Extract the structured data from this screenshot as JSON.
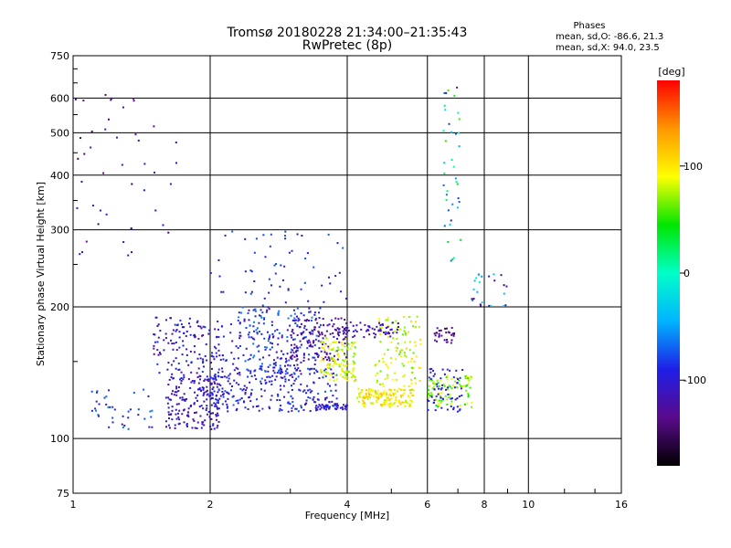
{
  "chart_data": {
    "type": "scatter",
    "title": "Tromsø 20180228 21:34:00–21:35:43",
    "subtitle": "RwPretec (8p)",
    "xlabel": "Frequency [MHz]",
    "ylabel": "Stationary phase Virtual Height [km]",
    "x_scale": "log",
    "y_scale": "log",
    "xlim": [
      1,
      16
    ],
    "ylim": [
      75,
      750
    ],
    "x_ticks": [
      "1",
      "2",
      "4",
      "6",
      "8",
      "10",
      "16"
    ],
    "y_ticks": [
      "75",
      "100",
      "200",
      "300",
      "400",
      "500",
      "600",
      "750"
    ],
    "grid": true,
    "phase_info": {
      "heading": "Phases",
      "line_o": "mean, sd,O:  -86.6, 21.3",
      "line_x": "mean, sd,X:  94.0, 23.5"
    },
    "colorbar": {
      "label": "[deg]",
      "ticks": [
        "100",
        "0",
        "-100"
      ],
      "range": [
        -180,
        180
      ],
      "colors": [
        "#000000",
        "#5a0a8c",
        "#1e1ee6",
        "#00b4ff",
        "#00ffc8",
        "#00e600",
        "#ffff00",
        "#ff9600",
        "#ff0000"
      ]
    },
    "clusters": [
      {
        "x": [
          1.6,
          2.1
        ],
        "y": [
          105,
          140
        ],
        "phase": [
          -130,
          -90
        ],
        "n": 180
      },
      {
        "x": [
          2.0,
          3.8
        ],
        "y": [
          115,
          145
        ],
        "phase": [
          -120,
          -70
        ],
        "n": 260
      },
      {
        "x": [
          1.5,
          2.3
        ],
        "y": [
          140,
          190
        ],
        "phase": [
          -130,
          -80
        ],
        "n": 150
      },
      {
        "x": [
          2.3,
          3.5
        ],
        "y": [
          140,
          200
        ],
        "phase": [
          -120,
          -60
        ],
        "n": 220
      },
      {
        "x": [
          3.0,
          4.0
        ],
        "y": [
          150,
          190
        ],
        "phase": [
          -140,
          -110
        ],
        "n": 120
      },
      {
        "x": [
          3.5,
          4.2
        ],
        "y": [
          135,
          170
        ],
        "phase": [
          60,
          110
        ],
        "n": 120
      },
      {
        "x": [
          4.2,
          5.6
        ],
        "y": [
          118,
          130
        ],
        "phase": [
          70,
          120
        ],
        "n": 150
      },
      {
        "x": [
          4.6,
          5.8
        ],
        "y": [
          130,
          190
        ],
        "phase": [
          60,
          110
        ],
        "n": 110
      },
      {
        "x": [
          6.0,
          7.5
        ],
        "y": [
          118,
          140
        ],
        "phase": [
          40,
          90
        ],
        "n": 90
      },
      {
        "x": [
          6.0,
          7.2
        ],
        "y": [
          115,
          145
        ],
        "phase": [
          -120,
          -80
        ],
        "n": 60
      },
      {
        "x": [
          3.8,
          5.2
        ],
        "y": [
          170,
          185
        ],
        "phase": [
          -130,
          -100
        ],
        "n": 70
      },
      {
        "x": [
          6.2,
          6.9
        ],
        "y": [
          165,
          180
        ],
        "phase": [
          -150,
          -120
        ],
        "n": 30
      },
      {
        "x": [
          3.4,
          4.0
        ],
        "y": [
          116,
          120
        ],
        "phase": [
          -110,
          -90
        ],
        "n": 40
      },
      {
        "x": [
          1.1,
          1.5
        ],
        "y": [
          105,
          130
        ],
        "phase": [
          -110,
          -60
        ],
        "n": 40
      },
      {
        "x": [
          1.0,
          1.7
        ],
        "y": [
          240,
          620
        ],
        "phase": [
          -150,
          -90
        ],
        "n": 45
      },
      {
        "x": [
          2.0,
          4.0
        ],
        "y": [
          200,
          300
        ],
        "phase": [
          -120,
          -70
        ],
        "n": 60
      },
      {
        "x": [
          6.5,
          7.1
        ],
        "y": [
          250,
          640
        ],
        "phase": [
          -120,
          60
        ],
        "n": 40
      },
      {
        "x": [
          7.5,
          9.0
        ],
        "y": [
          200,
          240
        ],
        "phase": [
          -150,
          0
        ],
        "n": 25
      }
    ]
  }
}
